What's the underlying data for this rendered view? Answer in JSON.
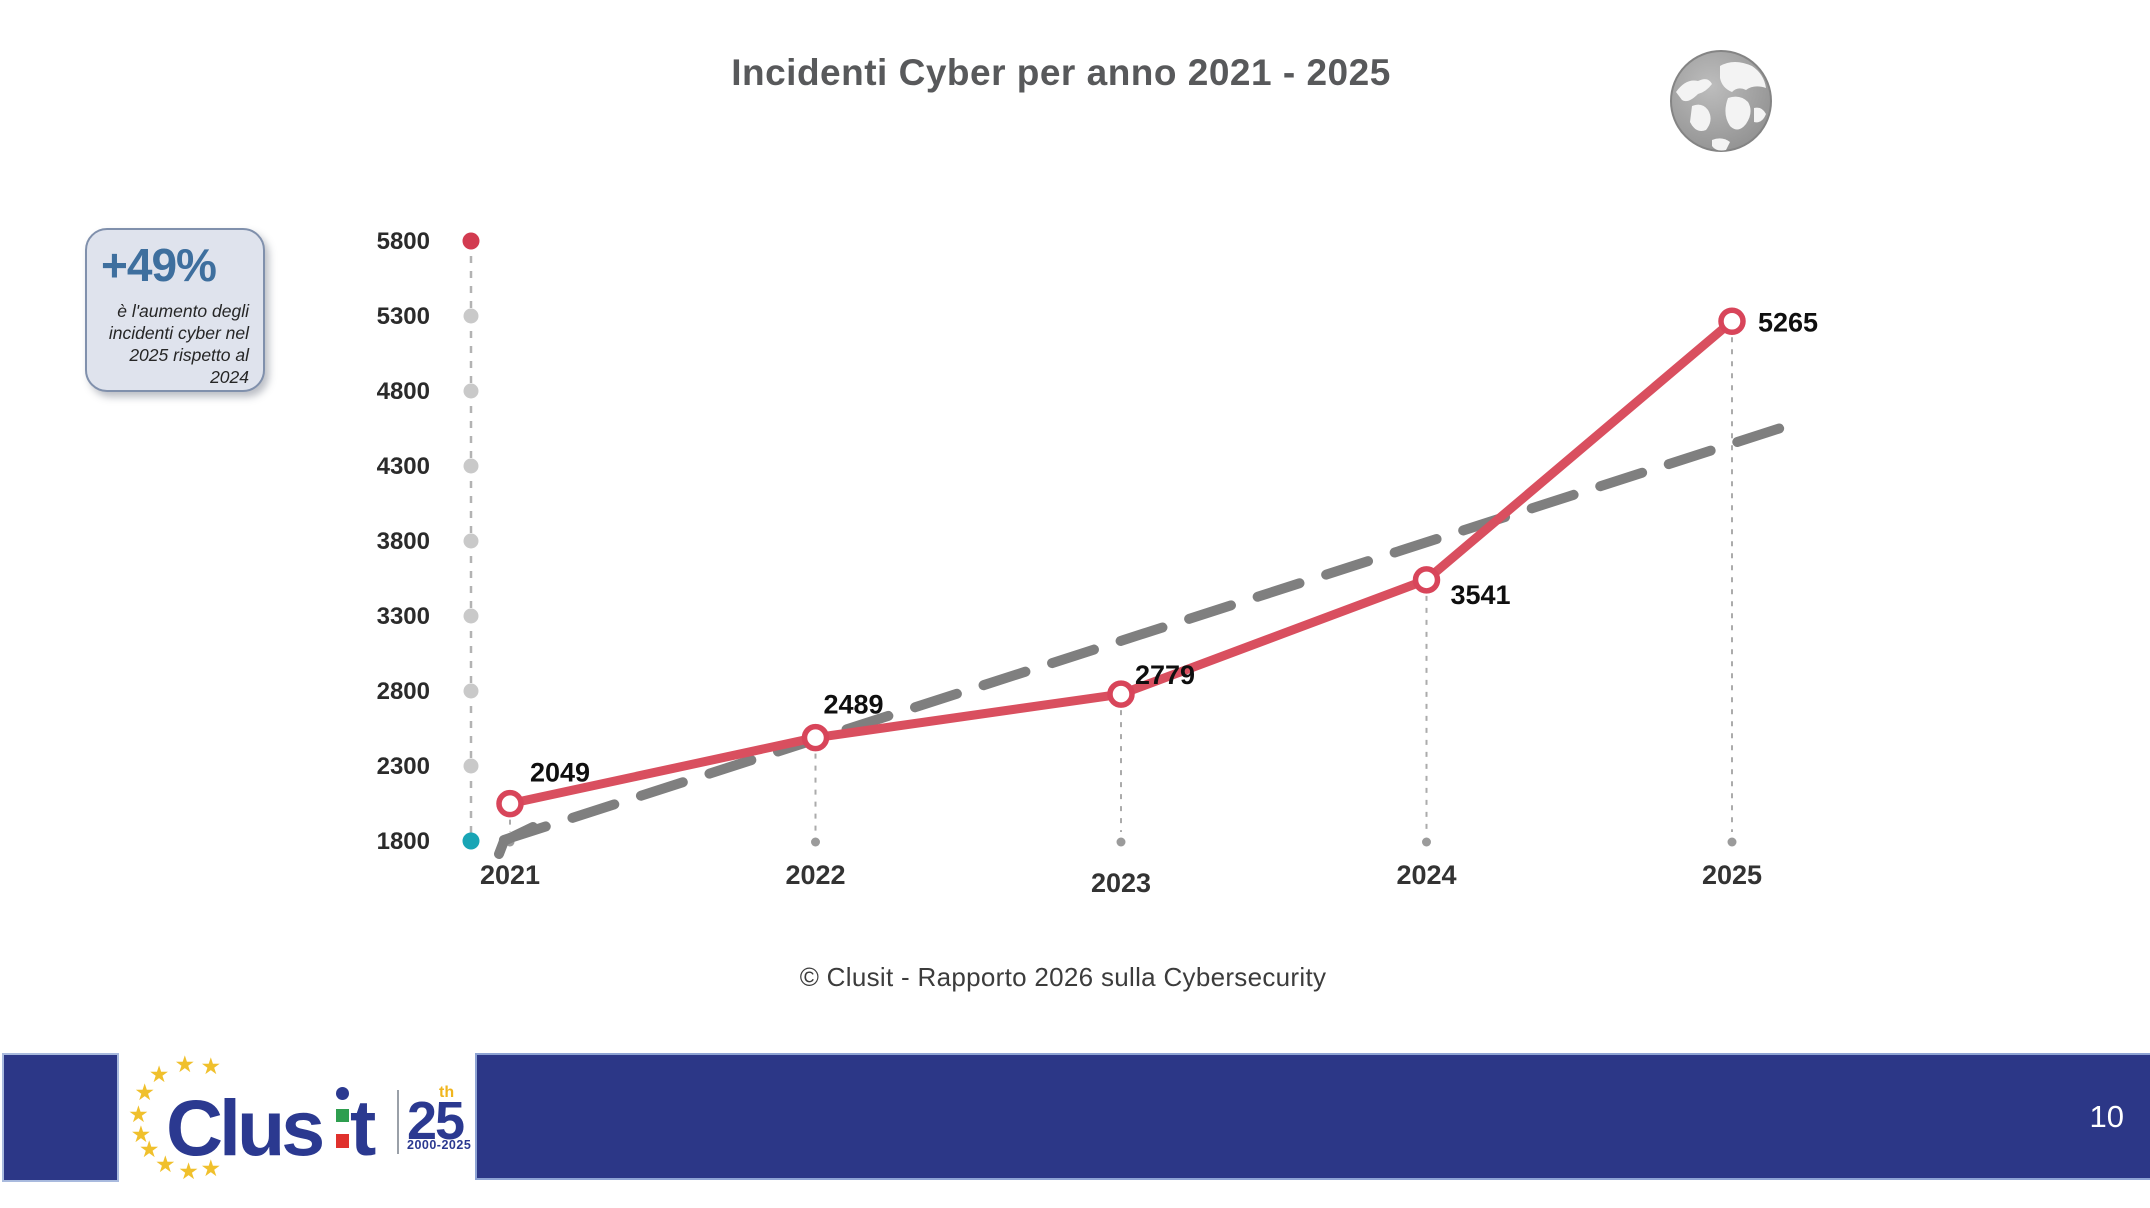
{
  "slide": {
    "title": "Incidenti Cyber per anno 2021 - 2025",
    "copyright": "© Clusit - Rapporto 2026 sulla Cybersecurity",
    "page_number": "10"
  },
  "callout": {
    "headline": "+49%",
    "body": "è l'aumento degli incidenti cyber nel 2025 rispetto al 2024"
  },
  "chart_data": {
    "type": "line",
    "title": "Incidenti Cyber per anno 2021 - 2025",
    "categories": [
      "2021",
      "2022",
      "2023",
      "2024",
      "2025"
    ],
    "series": [
      {
        "name": "Incidenti cyber per anno",
        "values": [
          2049,
          2489,
          2779,
          3541,
          5265
        ],
        "color": "#d94f5f",
        "marker": "open-circle",
        "data_labels": [
          "2049",
          "2489",
          "2779",
          "3541",
          "5265"
        ]
      }
    ],
    "trend_line": {
      "style": "dashed",
      "color": "#7f7f7f",
      "from": {
        "year": 2020.98,
        "value": 1807
      },
      "to": {
        "year": 2025.2,
        "value": 4580
      }
    },
    "y_axis": {
      "min": 1800,
      "max": 5800,
      "tick_step": 500,
      "ticks": [
        1800,
        2300,
        2800,
        3300,
        3800,
        4300,
        4800,
        5300,
        5800
      ],
      "style": "dashed-dotted",
      "top_dot_color": "#d23b50",
      "bottom_dot_color": "#19a5b5",
      "tick_dot_color": "#c9c9c9",
      "label_color": "#2b2b2b"
    },
    "grid": false,
    "legend": false,
    "value_label_color": "#0f0f0f",
    "connector_color": "#ababab"
  },
  "logo": {
    "wordmark_prefix": "Clus",
    "wordmark_suffix": "t",
    "anniversary": "25",
    "anniversary_sup": "th",
    "anniversary_years": "2000-2025",
    "star_icon": "★",
    "star_color": "#f0c02c",
    "navy": "#2b3990",
    "italy_green": "#2e9e4f",
    "italy_red": "#e0312d"
  },
  "colors": {
    "footer_navy": "#2c3787",
    "series_red": "#d94f5f",
    "trend_gray": "#7f7f7f",
    "callout_blue": "#3e6f9e",
    "title_gray": "#58595b"
  }
}
